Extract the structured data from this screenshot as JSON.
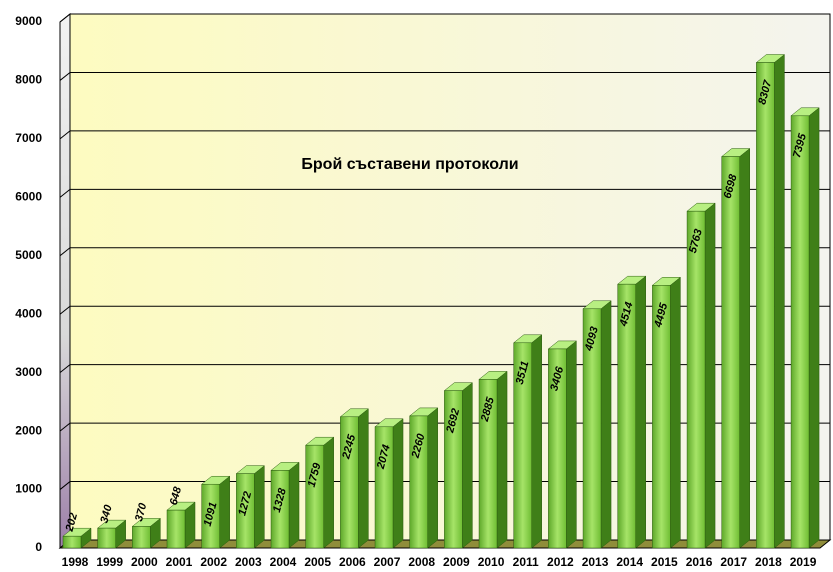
{
  "chart_data": {
    "type": "bar3d",
    "title": "Брой съставени протоколи",
    "categories": [
      "1998",
      "1999",
      "2000",
      "2001",
      "2002",
      "2003",
      "2004",
      "2005",
      "2006",
      "2007",
      "2008",
      "2009",
      "2010",
      "2011",
      "2012",
      "2013",
      "2014",
      "2015",
      "2016",
      "2017",
      "2018",
      "2019"
    ],
    "values": [
      202,
      340,
      370,
      648,
      1091,
      1272,
      1328,
      1759,
      2245,
      2074,
      2260,
      2692,
      2885,
      3511,
      3406,
      4093,
      4514,
      4495,
      5763,
      6698,
      8307,
      7395
    ],
    "color": "#7ccb3a",
    "ylim": [
      0,
      9000
    ],
    "yticks": [
      0,
      1000,
      2000,
      3000,
      4000,
      5000,
      6000,
      7000,
      8000,
      9000
    ],
    "grid": true
  }
}
